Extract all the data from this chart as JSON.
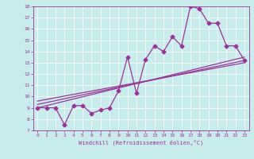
{
  "title": "",
  "xlabel": "Windchill (Refroidissement éolien,°C)",
  "bg_color": "#c8ecec",
  "line_color": "#993399",
  "xlim": [
    -0.5,
    23.5
  ],
  "ylim": [
    7,
    18
  ],
  "x_ticks": [
    0,
    1,
    2,
    3,
    4,
    5,
    6,
    7,
    8,
    9,
    10,
    11,
    12,
    13,
    14,
    15,
    16,
    17,
    18,
    19,
    20,
    21,
    22,
    23
  ],
  "y_ticks": [
    7,
    8,
    9,
    10,
    11,
    12,
    13,
    14,
    15,
    16,
    17,
    18
  ],
  "line1_x": [
    0,
    1,
    2,
    3,
    4,
    5,
    6,
    7,
    8,
    9,
    10,
    11,
    12,
    13,
    14,
    15,
    16,
    17,
    18,
    19,
    20,
    21,
    22,
    23
  ],
  "line1_y": [
    9,
    9,
    9,
    7.5,
    9.2,
    9.2,
    8.5,
    8.8,
    9,
    10.5,
    13.5,
    10.3,
    13.3,
    14.5,
    14,
    15.3,
    14.5,
    18.0,
    17.8,
    16.5,
    16.5,
    14.5,
    14.5,
    13.2
  ],
  "line2_x": [
    0,
    23
  ],
  "line2_y": [
    9,
    13.5
  ],
  "line3_x": [
    0,
    23
  ],
  "line3_y": [
    9.3,
    13.2
  ],
  "line4_x": [
    0,
    23
  ],
  "line4_y": [
    9.6,
    13.0
  ],
  "marker": "D",
  "markersize": 2.5,
  "linewidth": 0.9
}
